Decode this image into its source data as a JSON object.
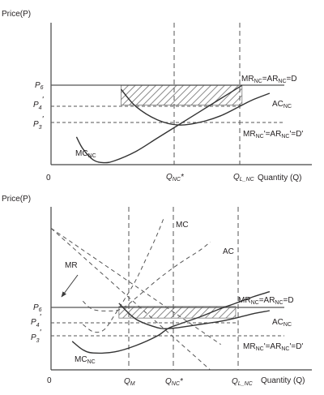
{
  "chart_data": [
    {
      "type": "line",
      "ylabel": "Price(P)",
      "xlabel": "Quantity (Q)",
      "origin_label": "0",
      "y_levels": [
        {
          "name": "P6",
          "label": "P",
          "sub": "6",
          "value": 6.0
        },
        {
          "name": "P4'",
          "label": "P",
          "sub": "4",
          "prime": "'",
          "value": 4.5
        },
        {
          "name": "P3'",
          "label": "P",
          "sub": "3",
          "prime": "'",
          "value": 3.0
        }
      ],
      "x_marks": [
        {
          "name": "QNC*",
          "label": "Q",
          "sub": "NC",
          "suffix": "*",
          "value": 6.0
        },
        {
          "name": "QL_NC",
          "label": "Q",
          "sub": "L_NC",
          "value": 9.0
        }
      ],
      "xlim": [
        0,
        11
      ],
      "ylim": [
        0,
        10
      ],
      "curves": [
        {
          "name": "MC_NC",
          "points": [
            [
              1.2,
              2.1
            ],
            [
              1.5,
              1.2
            ],
            [
              2.0,
              0.35
            ],
            [
              2.5,
              0.15
            ],
            [
              3.0,
              0.3
            ],
            [
              4.0,
              1.0
            ],
            [
              5.0,
              2.0
            ],
            [
              6.0,
              3.0
            ],
            [
              7.0,
              4.0
            ],
            [
              8.0,
              5.0
            ],
            [
              9.0,
              6.0
            ]
          ]
        },
        {
          "name": "AC_NC",
          "points": [
            [
              3.3,
              5.7
            ],
            [
              4.0,
              4.4
            ],
            [
              5.0,
              3.4
            ],
            [
              6.0,
              3.0
            ],
            [
              7.0,
              3.2
            ],
            [
              8.0,
              3.7
            ],
            [
              9.0,
              4.5
            ],
            [
              9.5,
              4.9
            ],
            [
              10.3,
              5.4
            ]
          ]
        },
        {
          "name": "MR_NC=AR_NC=D",
          "points": [
            [
              0,
              6.0
            ],
            [
              10.3,
              6.0
            ]
          ]
        },
        {
          "name": "MR_NC'=AR_NC'=D'",
          "points": [
            [
              0,
              3.0
            ],
            [
              10.3,
              3.0
            ]
          ]
        }
      ],
      "profit_area": {
        "x": [
          3.3,
          9.0
        ],
        "y": [
          4.5,
          6.0
        ]
      },
      "labels": {
        "demand": {
          "a": "MR",
          "a_sub": "NC",
          "b": "=AR",
          "b_sub": "NC",
          "c": "=D"
        },
        "ac": {
          "a": "AC",
          "a_sub": "NC"
        },
        "mc": {
          "a": "MC",
          "a_sub": "NC"
        },
        "demand_prime": {
          "a": "MR",
          "a_sub": "NC",
          "b": "'=AR",
          "b_sub": "NC",
          "c": "'=D'"
        }
      }
    },
    {
      "type": "line",
      "ylabel": "Price(P)",
      "xlabel": "Quantity (Q)",
      "origin_label": "0",
      "y_levels": [
        {
          "name": "P6",
          "label": "P",
          "sub": "6",
          "value": 6.0
        },
        {
          "name": "P4'",
          "label": "P",
          "sub": "4",
          "prime": "'",
          "value": 4.9
        },
        {
          "name": "P3'",
          "label": "P",
          "sub": "3",
          "prime": "'",
          "value": 3.9
        }
      ],
      "x_marks": [
        {
          "name": "QM",
          "label": "Q",
          "sub": "M",
          "value": 3.2
        },
        {
          "name": "QNC*",
          "label": "Q",
          "sub": "NC",
          "suffix": "*",
          "value": 5.5
        },
        {
          "name": "QL_NC",
          "label": "Q",
          "sub": "L_NC",
          "value": 8.7
        }
      ],
      "xlim": [
        0,
        11
      ],
      "ylim": [
        0,
        17
      ],
      "curves": [
        {
          "name": "MC_NC",
          "points": [
            [
              1.0,
              2.7
            ],
            [
              1.5,
              1.9
            ],
            [
              2.0,
              1.6
            ],
            [
              3.0,
              1.7
            ],
            [
              4.0,
              2.3
            ],
            [
              5.0,
              3.2
            ],
            [
              5.5,
              3.9
            ],
            [
              6.0,
              4.3
            ],
            [
              7.0,
              5.0
            ],
            [
              8.0,
              5.8
            ],
            [
              8.7,
              6.3
            ],
            [
              9.5,
              6.9
            ],
            [
              10.3,
              7.4
            ]
          ]
        },
        {
          "name": "AC_NC",
          "points": [
            [
              3.2,
              6.3
            ],
            [
              4.0,
              4.8
            ],
            [
              5.0,
              4.0
            ],
            [
              5.5,
              3.9
            ],
            [
              6.0,
              4.0
            ],
            [
              7.0,
              4.3
            ],
            [
              8.0,
              4.6
            ],
            [
              8.7,
              4.9
            ],
            [
              9.5,
              5.3
            ],
            [
              10.3,
              5.6
            ]
          ]
        },
        {
          "name": "MC",
          "dashed": true,
          "points": [
            [
              1.5,
              4.3
            ],
            [
              2.0,
              3.6
            ],
            [
              2.5,
              3.8
            ],
            [
              3.0,
              5.2
            ],
            [
              3.5,
              6.8
            ],
            [
              4.0,
              8.5
            ],
            [
              4.5,
              10.6
            ],
            [
              5.0,
              12.8
            ],
            [
              5.3,
              14.3
            ]
          ]
        },
        {
          "name": "AC",
          "dashed": true,
          "points": [
            [
              1.5,
              6.5
            ],
            [
              2.0,
              5.7
            ],
            [
              3.0,
              5.6
            ],
            [
              3.5,
              6.0
            ],
            [
              4.0,
              6.8
            ],
            [
              5.0,
              8.5
            ],
            [
              6.0,
              10.0
            ],
            [
              7.0,
              11.3
            ],
            [
              7.5,
              12.1
            ]
          ]
        },
        {
          "name": "MR",
          "dashed": true,
          "points": [
            [
              0,
              13.4
            ],
            [
              7.5,
              0
            ]
          ]
        },
        {
          "name": "AR",
          "dashed": true,
          "points": [
            [
              0,
              13.4
            ],
            [
              8.0,
              2.4
            ]
          ]
        },
        {
          "name": "MR_NC=AR_NC=D",
          "points": [
            [
              0,
              6.0
            ],
            [
              10.3,
              6.0
            ]
          ]
        },
        {
          "name": "MR_NC'=AR_NC'=D'",
          "points": [
            [
              0,
              3.9
            ],
            [
              10.3,
              3.9
            ]
          ]
        }
      ],
      "profit_area": {
        "x": [
          3.2,
          8.7
        ],
        "y": [
          4.9,
          6.0
        ]
      },
      "labels": {
        "mc_dashed": {
          "a": "MC"
        },
        "ac_dashed": {
          "a": "AC"
        },
        "mr": {
          "a": "MR"
        },
        "demand": {
          "a": "MR",
          "a_sub": "NC",
          "b": "=AR",
          "b_sub": "NC",
          "c": "=D"
        },
        "ac": {
          "a": "AC",
          "a_sub": "NC"
        },
        "mc": {
          "a": "MC",
          "a_sub": "NC"
        },
        "demand_prime": {
          "a": "MR",
          "a_sub": "NC",
          "b": "'=AR",
          "b_sub": "NC",
          "c": "'=D'"
        }
      }
    }
  ]
}
